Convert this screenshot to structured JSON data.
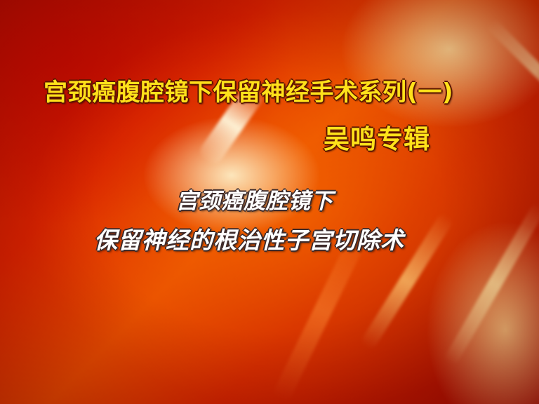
{
  "title_card": {
    "headline": "宫颈癌腹腔镜下保留神经手术系列(一)",
    "subhead": "吴鸣专辑",
    "caption_lines": [
      "宫颈癌腹腔镜下",
      "保留神经的根治性子宫切除术"
    ]
  },
  "colors": {
    "headline_text": "#ffe11a",
    "caption_text": "#ffffff",
    "background_base": "#d92300",
    "background_shadow": "#9a0900",
    "background_glow": "#ffd070"
  },
  "background": {
    "style": "orange-red abstract light streaks"
  }
}
